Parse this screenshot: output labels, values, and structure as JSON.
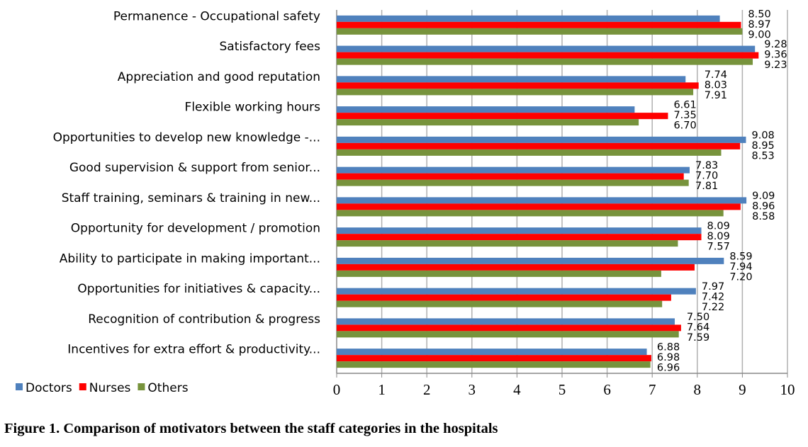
{
  "chart_data": {
    "type": "bar",
    "orientation": "horizontal",
    "title": "",
    "xlabel": "",
    "ylabel": "",
    "xlim": [
      0,
      10
    ],
    "x_ticks": [
      "0",
      "1",
      "2",
      "3",
      "4",
      "5",
      "6",
      "7",
      "8",
      "9",
      "10"
    ],
    "grid": "vertical",
    "legend_position": "bottom-left",
    "categories": [
      "Permanence - Occupational safety",
      "Satisfactory fees",
      "Appreciation and good reputation",
      "Flexible working hours",
      "Opportunities to develop new knowledge -...",
      "Good supervision & support from senior...",
      "Staff training, seminars & training in new...",
      "Opportunity for development / promotion",
      "Ability to participate in making important...",
      "Opportunities for initiatives & capacity...",
      "Recognition of contribution & progress",
      "Incentives for extra effort & productivity..."
    ],
    "series": [
      {
        "name": "Doctors",
        "color": "#4f81bd",
        "values": [
          8.5,
          9.28,
          7.74,
          6.61,
          9.08,
          7.83,
          9.09,
          8.09,
          8.59,
          7.97,
          7.5,
          6.88
        ]
      },
      {
        "name": "Nurses",
        "color": "#ff0000",
        "values": [
          8.97,
          9.36,
          8.03,
          7.35,
          8.95,
          7.7,
          8.96,
          8.09,
          7.94,
          7.42,
          7.64,
          6.98
        ]
      },
      {
        "name": "Others",
        "color": "#77933c",
        "values": [
          9.0,
          9.23,
          7.91,
          6.7,
          8.53,
          7.81,
          8.58,
          7.57,
          7.2,
          7.22,
          7.59,
          6.96
        ]
      }
    ]
  },
  "caption": "Figure 1. Comparison of motivators between the staff categories in the hospitals"
}
